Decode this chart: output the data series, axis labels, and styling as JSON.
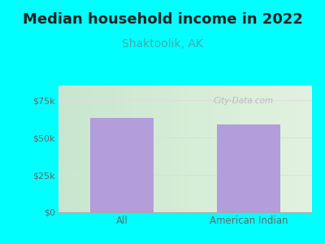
{
  "title": "Median household income in 2022",
  "subtitle": "Shaktoolik, AK",
  "categories": [
    "All",
    "American Indian"
  ],
  "values": [
    63000,
    59000
  ],
  "bar_color": "#b39ddb",
  "bg_outer": "#00ffff",
  "yticks": [
    0,
    25000,
    50000,
    75000
  ],
  "ytick_labels": [
    "$0",
    "$25k",
    "$50k",
    "$75k"
  ],
  "ylim": [
    0,
    85000
  ],
  "title_fontsize": 13,
  "subtitle_fontsize": 10,
  "title_color": "#222222",
  "subtitle_color": "#44aaaa",
  "tick_color": "#666666",
  "watermark": "City-Data.com",
  "grid_color": "#dddddd"
}
